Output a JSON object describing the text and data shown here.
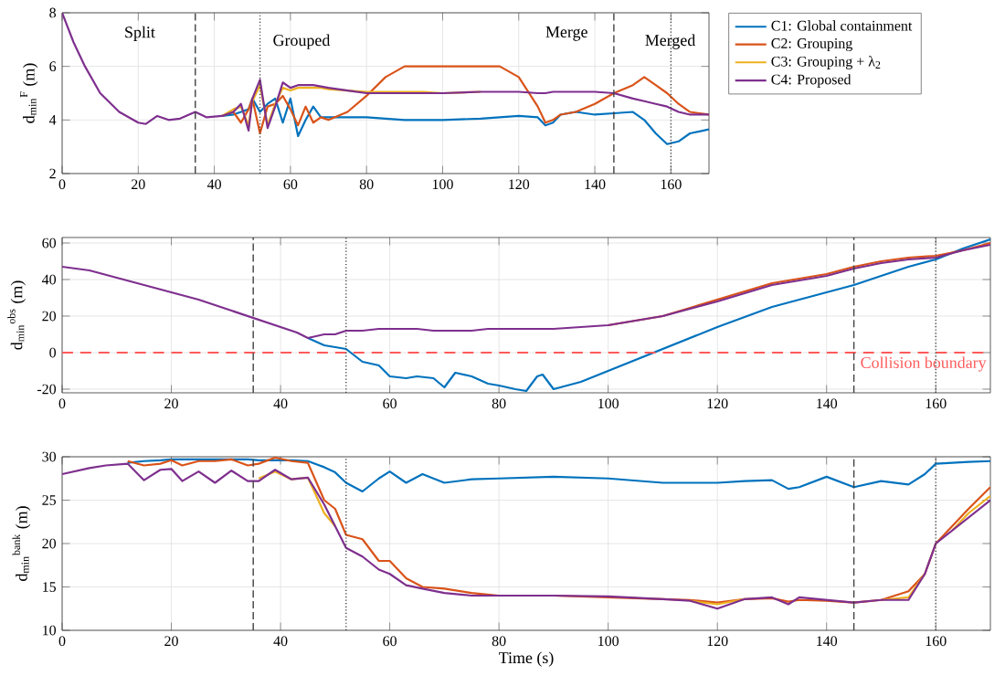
{
  "chart_data": [
    {
      "type": "line",
      "ylabel": "d$_{min}$$^{F}$ (m)",
      "xlim": [
        0,
        170
      ],
      "ylim": [
        2,
        8
      ],
      "xticks": [
        0,
        20,
        40,
        60,
        80,
        100,
        120,
        140,
        160
      ],
      "yticks": [
        2,
        4,
        6,
        8
      ],
      "grid": true,
      "legend": "right",
      "line_style": "solid",
      "x": [
        0,
        3,
        6,
        10,
        15,
        20,
        22,
        25,
        28,
        31,
        35,
        38,
        42,
        45,
        47,
        49,
        50,
        52,
        54,
        56,
        58,
        60,
        62,
        64,
        66,
        68,
        70,
        75,
        80,
        85,
        90,
        95,
        100,
        110,
        115,
        120,
        125,
        127,
        129,
        131,
        135,
        140,
        145,
        150,
        153,
        156,
        159,
        162,
        165,
        170
      ],
      "series": [
        {
          "name": "C1: Global containment",
          "color": "#0072bd",
          "values": [
            null,
            null,
            null,
            null,
            null,
            null,
            null,
            null,
            null,
            null,
            null,
            null,
            4.15,
            4.2,
            4.3,
            4.4,
            4.8,
            4.3,
            4.6,
            4.8,
            3.9,
            4.8,
            3.4,
            4.0,
            4.5,
            4.1,
            4.1,
            4.1,
            4.1,
            4.05,
            4.0,
            4.0,
            4.0,
            4.05,
            4.1,
            4.15,
            4.1,
            3.8,
            3.9,
            4.2,
            4.3,
            4.2,
            4.25,
            4.3,
            4.0,
            3.5,
            3.1,
            3.2,
            3.5,
            3.65
          ]
        },
        {
          "name": "C2: Grouping",
          "color": "#d95319",
          "values": [
            null,
            null,
            null,
            null,
            null,
            null,
            null,
            null,
            null,
            null,
            null,
            null,
            4.15,
            4.3,
            3.9,
            4.4,
            4.8,
            3.5,
            4.5,
            4.6,
            4.9,
            4.4,
            3.8,
            4.5,
            3.9,
            4.1,
            4.0,
            4.3,
            4.9,
            5.6,
            6.0,
            6.0,
            6.0,
            6.0,
            6.0,
            5.6,
            4.5,
            3.9,
            4.0,
            4.2,
            4.3,
            4.6,
            5.0,
            5.3,
            5.6,
            5.3,
            5.0,
            4.6,
            4.3,
            4.2
          ]
        },
        {
          "name": "C3: Grouping + λ$_{2}$",
          "color": "#edb120",
          "values": [
            null,
            null,
            null,
            null,
            null,
            null,
            null,
            null,
            null,
            null,
            null,
            null,
            4.15,
            4.4,
            4.5,
            3.8,
            4.7,
            5.3,
            3.8,
            4.6,
            5.2,
            5.1,
            5.2,
            5.2,
            5.2,
            5.2,
            5.15,
            5.1,
            5.05,
            5.05,
            5.05,
            5.05,
            5.0,
            5.05,
            null,
            null,
            null,
            null,
            null,
            null,
            null,
            null,
            null,
            null,
            null,
            null,
            null,
            null,
            null,
            null
          ]
        },
        {
          "name": "C4: Proposed",
          "color": "#7e2f8e",
          "values": [
            8,
            6.9,
            6.0,
            5.0,
            4.3,
            3.9,
            3.85,
            4.15,
            4.0,
            4.05,
            4.3,
            4.1,
            4.15,
            4.3,
            4.6,
            3.6,
            4.8,
            5.5,
            3.7,
            4.5,
            5.4,
            5.2,
            5.3,
            5.3,
            5.3,
            5.25,
            5.2,
            5.1,
            5.0,
            5.0,
            5.0,
            5.0,
            5.0,
            5.05,
            5.05,
            5.05,
            5.0,
            5.0,
            5.05,
            5.05,
            5.05,
            5.05,
            5.0,
            4.8,
            4.7,
            4.6,
            4.5,
            4.3,
            4.2,
            4.2
          ]
        }
      ],
      "ref_lines": [
        {
          "axis": "x",
          "value": 35,
          "color": "#404040",
          "line_style": "dashed"
        },
        {
          "axis": "x",
          "value": 52,
          "color": "#404040",
          "line_style": "dotted"
        },
        {
          "axis": "x",
          "value": 145,
          "color": "#404040",
          "line_style": "dashed"
        },
        {
          "axis": "x",
          "value": 160,
          "color": "#404040",
          "line_style": "dotted"
        }
      ],
      "annotations": [
        "Split",
        "Grouped",
        "Merge",
        "Merged"
      ]
    },
    {
      "type": "line",
      "ylabel": "d$_{min}$$^{obs}$ (m)",
      "xlim": [
        0,
        170
      ],
      "ylim": [
        -22,
        63
      ],
      "xticks": [
        0,
        20,
        40,
        60,
        80,
        100,
        120,
        140,
        160
      ],
      "yticks": [
        -20,
        0,
        20,
        40,
        60
      ],
      "grid": true,
      "line_style": "solid",
      "x": [
        0,
        5,
        10,
        15,
        20,
        25,
        30,
        35,
        40,
        43,
        45,
        48,
        50,
        52,
        55,
        58,
        60,
        63,
        65,
        68,
        70,
        72,
        75,
        78,
        80,
        83,
        85,
        87,
        88,
        90,
        95,
        100,
        110,
        120,
        130,
        140,
        145,
        150,
        155,
        160,
        165,
        170
      ],
      "series": [
        {
          "color": "#0072bd",
          "values": [
            null,
            null,
            null,
            null,
            null,
            null,
            null,
            null,
            null,
            null,
            8,
            4,
            3,
            2,
            -5,
            -7,
            -13,
            -14,
            -13,
            -14,
            -19,
            -11,
            -13,
            -17,
            -18,
            -20,
            -21,
            -13,
            -12,
            -20,
            -16,
            -10,
            2,
            14,
            25,
            33,
            37,
            42,
            47,
            51,
            57,
            62
          ]
        },
        {
          "color": "#d95319",
          "values": [
            null,
            null,
            null,
            null,
            null,
            null,
            null,
            null,
            null,
            null,
            null,
            null,
            null,
            null,
            null,
            null,
            null,
            null,
            null,
            null,
            null,
            null,
            null,
            null,
            null,
            null,
            null,
            null,
            null,
            null,
            null,
            15,
            20,
            29,
            38,
            43,
            47,
            50,
            52,
            53,
            56,
            60
          ]
        },
        {
          "color": "#7e2f8e",
          "values": [
            47,
            45,
            41,
            37,
            33,
            29,
            24,
            19,
            14,
            11,
            8,
            10,
            10,
            12,
            12,
            13,
            13,
            13,
            13,
            12,
            12,
            12,
            12,
            13,
            13,
            13,
            13,
            13,
            13,
            13,
            14,
            15,
            20,
            28,
            37,
            42,
            46,
            49,
            51,
            52,
            56,
            59
          ]
        }
      ],
      "ref_lines": [
        {
          "axis": "y",
          "value": 0,
          "label": "Collision boundary",
          "color": "#ff5a5a",
          "line_style": "dashed"
        },
        {
          "axis": "x",
          "value": 35,
          "color": "#404040",
          "line_style": "dashed"
        },
        {
          "axis": "x",
          "value": 52,
          "color": "#404040",
          "line_style": "dotted"
        },
        {
          "axis": "x",
          "value": 145,
          "color": "#404040",
          "line_style": "dashed"
        },
        {
          "axis": "x",
          "value": 160,
          "color": "#404040",
          "line_style": "dotted"
        }
      ]
    },
    {
      "type": "line",
      "ylabel": "d$_{min}$$^{bank}$ (m)",
      "xlabel": "Time (s)",
      "xlim": [
        0,
        170
      ],
      "ylim": [
        10,
        30
      ],
      "xticks": [
        0,
        20,
        40,
        60,
        80,
        100,
        120,
        140,
        160
      ],
      "yticks": [
        10,
        15,
        20,
        25,
        30
      ],
      "grid": true,
      "line_style": "solid",
      "x": [
        0,
        5,
        8,
        12,
        15,
        18,
        20,
        22,
        25,
        28,
        31,
        34,
        36,
        39,
        42,
        45,
        48,
        50,
        52,
        55,
        58,
        60,
        63,
        66,
        70,
        75,
        80,
        90,
        100,
        110,
        115,
        120,
        125,
        130,
        133,
        135,
        140,
        145,
        150,
        155,
        158,
        160,
        163,
        166,
        170
      ],
      "series": [
        {
          "color": "#0072bd",
          "values": [
            null,
            null,
            null,
            29.3,
            29.5,
            29.6,
            29.7,
            29.7,
            29.7,
            29.7,
            29.7,
            29.7,
            29.6,
            29.6,
            29.6,
            29.5,
            28.8,
            28.2,
            27,
            26,
            27.5,
            28.3,
            27,
            28,
            27,
            27.4,
            27.5,
            27.7,
            27.5,
            27,
            27,
            27,
            27.2,
            27.3,
            26.3,
            26.5,
            27.7,
            26.5,
            27.2,
            26.8,
            28,
            29.2,
            29.3,
            29.4,
            29.5
          ]
        },
        {
          "color": "#d95319",
          "values": [
            null,
            null,
            null,
            29.5,
            29,
            29.2,
            29.6,
            29,
            29.5,
            29.5,
            29.7,
            29,
            29.2,
            29.9,
            29.5,
            29.3,
            25,
            24,
            21,
            20.5,
            18,
            18,
            16,
            15,
            14.8,
            14.3,
            14,
            14,
            13.8,
            13.6,
            13.5,
            13.2,
            13.6,
            13.7,
            13.3,
            13.5,
            13.4,
            13.2,
            13.5,
            14.5,
            16.5,
            20,
            22,
            24,
            26.5
          ]
        },
        {
          "color": "#edb120",
          "values": [
            null,
            null,
            null,
            null,
            null,
            null,
            null,
            null,
            null,
            null,
            null,
            null,
            27.5,
            28.3,
            27.4,
            27.6,
            23.5,
            22,
            null,
            null,
            null,
            null,
            null,
            null,
            null,
            null,
            null,
            null,
            null,
            null,
            13.4,
            13.0,
            13.6,
            null,
            null,
            null,
            null,
            null,
            13.5,
            13.8,
            16.5,
            null,
            21.5,
            23.5,
            25.5
          ]
        },
        {
          "color": "#7e2f8e",
          "values": [
            28,
            28.7,
            29,
            29.2,
            27.3,
            28.5,
            28.6,
            27.2,
            28.3,
            27,
            28.4,
            27.2,
            27.2,
            28.5,
            27.4,
            27.6,
            24.5,
            22,
            19.5,
            18.5,
            17,
            16.5,
            15.2,
            14.8,
            14.3,
            14,
            14,
            14,
            13.9,
            13.6,
            13.4,
            12.5,
            13.6,
            13.8,
            13,
            13.8,
            13.5,
            13.2,
            13.5,
            13.5,
            16.5,
            20,
            21.5,
            23,
            25
          ]
        }
      ],
      "ref_lines": [
        {
          "axis": "x",
          "value": 35,
          "color": "#404040",
          "line_style": "dashed"
        },
        {
          "axis": "x",
          "value": 52,
          "color": "#404040",
          "line_style": "dotted"
        },
        {
          "axis": "x",
          "value": 145,
          "color": "#404040",
          "line_style": "dashed"
        },
        {
          "axis": "x",
          "value": 160,
          "color": "#404040",
          "line_style": "dotted"
        }
      ]
    }
  ]
}
